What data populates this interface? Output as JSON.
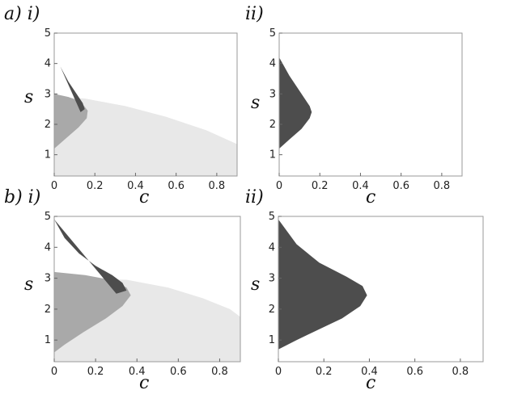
{
  "colors": {
    "dark": "#4d4d4d",
    "mid": "#a9a9a9",
    "light": "#e8e8e8",
    "frame": "#9a9a9a"
  },
  "chart_data": [
    {
      "panel_label": "a) i)",
      "type": "area",
      "xlabel": "c",
      "ylabel": "s",
      "xlim": [
        0,
        0.9
      ],
      "ylim": [
        0.3,
        5
      ],
      "xticks": [
        0,
        0.2,
        0.4,
        0.6,
        0.8
      ],
      "yticks": [
        1,
        2,
        3,
        4,
        5
      ],
      "series": [
        {
          "role": "dark",
          "ylim": [
            2.4,
            4.35
          ],
          "points": [
            [
              0,
              4.35
            ],
            [
              0.03,
              3.9
            ],
            [
              0.07,
              3.4
            ],
            [
              0.11,
              3.0
            ],
            [
              0.14,
              2.7
            ],
            [
              0.15,
              2.5
            ],
            [
              0.13,
              2.4
            ]
          ]
        },
        {
          "role": "mid",
          "ylim": [
            1.2,
            3.0
          ],
          "points": [
            [
              0,
              3.0
            ],
            [
              0.07,
              2.9
            ],
            [
              0.13,
              2.75
            ],
            [
              0.165,
              2.45
            ],
            [
              0.16,
              2.2
            ],
            [
              0.12,
              1.9
            ],
            [
              0.06,
              1.55
            ],
            [
              0,
              1.2
            ]
          ]
        },
        {
          "role": "light",
          "ylim": [
            0.3,
            2.9
          ],
          "points": [
            [
              0,
              2.9
            ],
            [
              0.15,
              2.85
            ],
            [
              0.35,
              2.6
            ],
            [
              0.55,
              2.25
            ],
            [
              0.75,
              1.8
            ],
            [
              0.9,
              1.35
            ],
            [
              0.9,
              0.3
            ],
            [
              0,
              0.3
            ]
          ]
        }
      ]
    },
    {
      "panel_label": "ii)",
      "type": "area",
      "xlabel": "c",
      "ylabel": "s",
      "xlim": [
        0,
        0.9
      ],
      "ylim": [
        0.3,
        5
      ],
      "xticks": [
        0,
        0.2,
        0.4,
        0.6,
        0.8
      ],
      "yticks": [
        1,
        2,
        3,
        4,
        5
      ],
      "series": [
        {
          "role": "dark",
          "ylim": [
            1.2,
            4.2
          ],
          "points": [
            [
              0,
              4.2
            ],
            [
              0.05,
              3.6
            ],
            [
              0.11,
              3.0
            ],
            [
              0.15,
              2.6
            ],
            [
              0.16,
              2.4
            ],
            [
              0.15,
              2.2
            ],
            [
              0.11,
              1.85
            ],
            [
              0.05,
              1.5
            ],
            [
              0,
              1.2
            ]
          ]
        }
      ]
    },
    {
      "panel_label": "b) i)",
      "type": "area",
      "xlabel": "c",
      "ylabel": "s",
      "xlim": [
        0,
        0.9
      ],
      "ylim": [
        0.3,
        5
      ],
      "xticks": [
        0,
        0.2,
        0.4,
        0.6,
        0.8
      ],
      "yticks": [
        1,
        2,
        3,
        4,
        5
      ],
      "series": [
        {
          "role": "dark",
          "ylim": [
            2.5,
            4.9
          ],
          "points": [
            [
              0,
              4.9
            ],
            [
              0.05,
              4.3
            ],
            [
              0.12,
              3.8
            ],
            [
              0.2,
              3.4
            ],
            [
              0.28,
              3.1
            ],
            [
              0.33,
              2.85
            ],
            [
              0.35,
              2.6
            ],
            [
              0.3,
              2.5
            ]
          ]
        },
        {
          "role": "mid",
          "ylim": [
            0.6,
            3.2
          ],
          "points": [
            [
              0,
              3.2
            ],
            [
              0.15,
              3.1
            ],
            [
              0.27,
              2.95
            ],
            [
              0.35,
              2.7
            ],
            [
              0.37,
              2.45
            ],
            [
              0.33,
              2.1
            ],
            [
              0.25,
              1.7
            ],
            [
              0.14,
              1.25
            ],
            [
              0.05,
              0.85
            ],
            [
              0,
              0.6
            ]
          ]
        },
        {
          "role": "light",
          "ylim": [
            0.3,
            3.0
          ],
          "points": [
            [
              0,
              3.0
            ],
            [
              0.35,
              2.95
            ],
            [
              0.55,
              2.7
            ],
            [
              0.72,
              2.35
            ],
            [
              0.85,
              2.0
            ],
            [
              0.9,
              1.75
            ],
            [
              0.9,
              0.3
            ],
            [
              0,
              0.3
            ]
          ]
        }
      ]
    },
    {
      "panel_label": "ii)",
      "type": "area",
      "xlabel": "c",
      "ylabel": "s",
      "xlim": [
        0,
        0.9
      ],
      "ylim": [
        0.3,
        5
      ],
      "xticks": [
        0,
        0.2,
        0.4,
        0.6,
        0.8
      ],
      "yticks": [
        1,
        2,
        3,
        4,
        5
      ],
      "series": [
        {
          "role": "dark",
          "ylim": [
            0.7,
            4.9
          ],
          "points": [
            [
              0,
              4.9
            ],
            [
              0.08,
              4.1
            ],
            [
              0.18,
              3.5
            ],
            [
              0.3,
              3.05
            ],
            [
              0.37,
              2.75
            ],
            [
              0.39,
              2.45
            ],
            [
              0.36,
              2.1
            ],
            [
              0.28,
              1.7
            ],
            [
              0.18,
              1.35
            ],
            [
              0.08,
              1.0
            ],
            [
              0,
              0.7
            ]
          ]
        }
      ]
    }
  ]
}
